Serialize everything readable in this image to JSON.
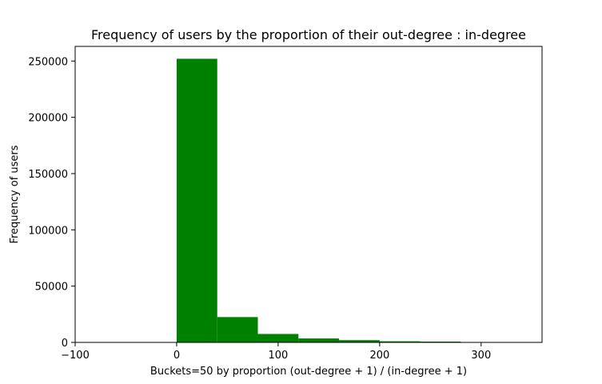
{
  "colors": {
    "bar": "#008000",
    "axes": "#000000",
    "background": "#ffffff"
  },
  "chart_data": {
    "type": "bar",
    "title": "Frequency of users by the proportion of their out-degree : in-degree",
    "xlabel": "Buckets=50 by proportion (out-degree + 1) / (in-degree + 1)",
    "ylabel": "Frequency of users",
    "xlim": [
      -100,
      360
    ],
    "ylim": [
      0,
      263000
    ],
    "x_ticks": [
      -100,
      0,
      100,
      200,
      300
    ],
    "x_tick_labels": [
      "−100",
      "0",
      "100",
      "200",
      "300"
    ],
    "y_ticks": [
      0,
      50000,
      100000,
      150000,
      200000,
      250000
    ],
    "y_tick_labels": [
      "0",
      "50000",
      "100000",
      "150000",
      "200000",
      "250000"
    ],
    "bins": [
      {
        "x0": 0,
        "x1": 40,
        "count": 252000
      },
      {
        "x0": 40,
        "x1": 80,
        "count": 22500
      },
      {
        "x0": 80,
        "x1": 120,
        "count": 7500
      },
      {
        "x0": 120,
        "x1": 160,
        "count": 3500
      },
      {
        "x0": 160,
        "x1": 200,
        "count": 2000
      },
      {
        "x0": 200,
        "x1": 240,
        "count": 1000
      },
      {
        "x0": 240,
        "x1": 280,
        "count": 700
      },
      {
        "x0": 280,
        "x1": 320,
        "count": 0
      },
      {
        "x0": 320,
        "x1": 360,
        "count": 0
      }
    ],
    "grid": false,
    "legend": "none"
  }
}
